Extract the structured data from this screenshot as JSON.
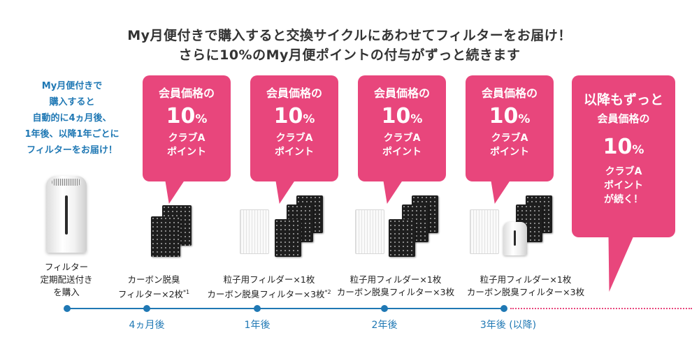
{
  "header": {
    "line1": "My月便付きで購入すると交換サイクルにあわせてフィルターをお届け！",
    "line2": "さらに10%のMy月便ポイントの付与がずっと続きます"
  },
  "intro": {
    "lines": [
      "My月便付きで",
      "購入すると",
      "自動的に4ヵ月後、",
      "1年後、以降1年ごとに",
      "フィルターをお届け！"
    ]
  },
  "bubbles": [
    {
      "top": "会員価格の",
      "number": "10",
      "unit": "%",
      "line3": "クラブA",
      "line4": "ポイント"
    },
    {
      "top": "会員価格の",
      "number": "10",
      "unit": "%",
      "line3": "クラブA",
      "line4": "ポイント"
    },
    {
      "top": "会員価格の",
      "number": "10",
      "unit": "%",
      "line3": "クラブA",
      "line4": "ポイント"
    },
    {
      "top": "会員価格の",
      "number": "10",
      "unit": "%",
      "line3": "クラブA",
      "line4": "ポイント"
    }
  ],
  "final_bubble": {
    "line1": "以降もずっと",
    "line2": "会員価格の",
    "number": "10",
    "unit": "%",
    "line3": "クラブA",
    "line4": "ポイント",
    "line5": "が続く！"
  },
  "captions": {
    "purifier": [
      "フィルター",
      "定期配送付き",
      "を購入"
    ],
    "stage1": {
      "line1": "カーボン脱臭",
      "line2": "フィルター×2枚",
      "note": "*1"
    },
    "stage2": {
      "line1": "粒子用フィルダー×1枚",
      "line2": "カーボン脱臭フィルター×3枚",
      "note": "*2"
    },
    "stage3": {
      "line1": "粒子用フィルダー×1枚",
      "line2": "カーボン脱臭フィルター×3枚"
    },
    "stage4": {
      "line1": "粒子用フィルダー×1枚",
      "line2": "カーボン脱臭フィルター×3枚"
    }
  },
  "timeline": {
    "labels": [
      "4ヵ月後",
      "1年後",
      "2年後",
      "3年後 (以降)"
    ]
  },
  "colors": {
    "accent_pink": "#e8467c",
    "accent_blue": "#1f78b4"
  }
}
